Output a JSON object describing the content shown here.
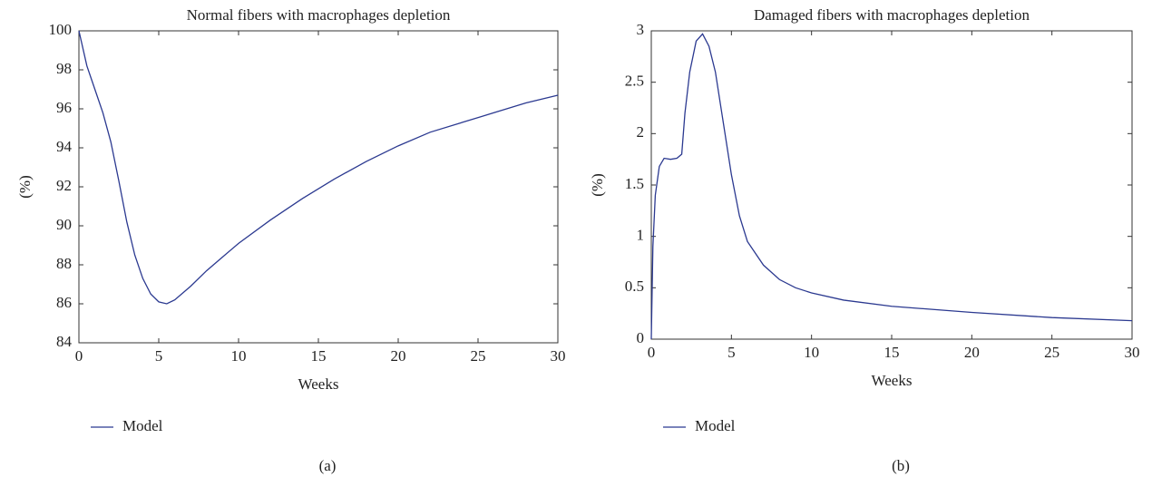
{
  "chart_data": [
    {
      "type": "line",
      "title": "Normal fibers with macrophages depletion",
      "x_label": "Weeks",
      "y_label": "(%)",
      "caption": "(a)",
      "x": [
        0,
        0.5,
        1,
        1.5,
        2,
        2.5,
        3,
        3.5,
        4,
        4.5,
        5,
        5.5,
        6,
        7,
        8,
        9,
        10,
        12,
        14,
        16,
        18,
        20,
        22,
        24,
        26,
        28,
        30
      ],
      "series": [
        {
          "name": "Model",
          "color": "#2b3990",
          "values": [
            100,
            98.2,
            97,
            95.8,
            94.3,
            92.3,
            90.2,
            88.5,
            87.3,
            86.5,
            86.1,
            86.0,
            86.2,
            86.9,
            87.7,
            88.4,
            89.1,
            90.3,
            91.4,
            92.4,
            93.3,
            94.1,
            94.8,
            95.3,
            95.8,
            96.3,
            96.7
          ]
        }
      ],
      "xlim": [
        0,
        30
      ],
      "xticks": [
        0,
        5,
        10,
        15,
        20,
        25,
        30
      ],
      "ylim": [
        84,
        100
      ],
      "yticks": [
        84,
        86,
        88,
        90,
        92,
        94,
        96,
        98,
        100
      ]
    },
    {
      "type": "line",
      "title": "Damaged fibers with macrophages depletion",
      "x_label": "Weeks",
      "y_label": "(%)",
      "caption": "(b)",
      "x": [
        0,
        0.1,
        0.25,
        0.5,
        0.8,
        1.2,
        1.6,
        1.9,
        2.1,
        2.4,
        2.8,
        3.2,
        3.6,
        4,
        4.5,
        5,
        5.5,
        6,
        7,
        8,
        9,
        10,
        12,
        15,
        20,
        25,
        30
      ],
      "series": [
        {
          "name": "Model",
          "color": "#2b3990",
          "values": [
            0,
            0.9,
            1.4,
            1.68,
            1.76,
            1.75,
            1.76,
            1.8,
            2.2,
            2.6,
            2.9,
            2.97,
            2.85,
            2.6,
            2.1,
            1.6,
            1.2,
            0.95,
            0.72,
            0.58,
            0.5,
            0.45,
            0.38,
            0.32,
            0.26,
            0.21,
            0.18
          ]
        }
      ],
      "xlim": [
        0,
        30
      ],
      "xticks": [
        0,
        5,
        10,
        15,
        20,
        25,
        30
      ],
      "ylim": [
        0,
        3
      ],
      "yticks": [
        0,
        0.5,
        1,
        1.5,
        2,
        2.5,
        3
      ]
    }
  ]
}
